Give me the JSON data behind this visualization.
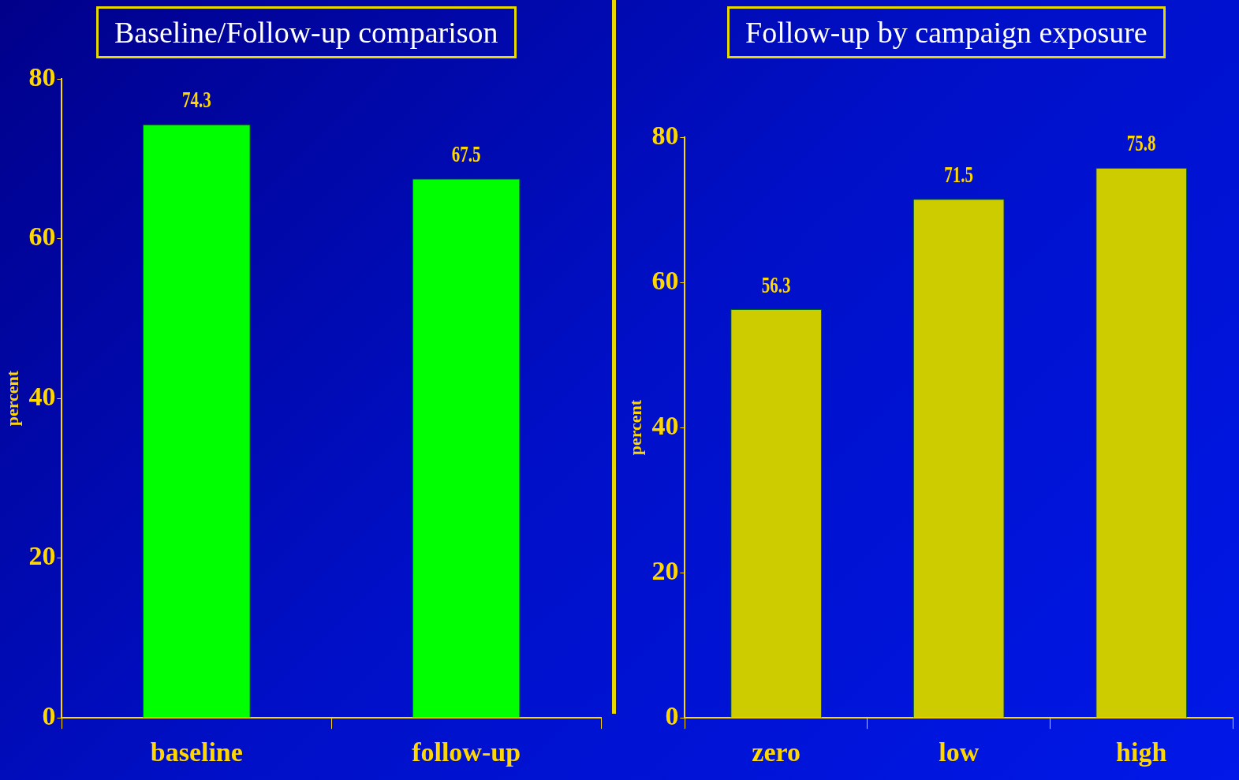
{
  "chart_data": [
    {
      "type": "bar",
      "title": "Baseline/Follow-up comparison",
      "ylabel": "percent",
      "categories": [
        "baseline",
        "follow-up"
      ],
      "values": [
        74.3,
        67.5
      ],
      "color": "#00ff00",
      "ylim": [
        0,
        80
      ],
      "yticks": [
        0,
        20,
        40,
        60,
        80
      ],
      "data_labels": true
    },
    {
      "type": "bar",
      "title": "Follow-up by campaign exposure",
      "ylabel": "percent",
      "categories": [
        "zero",
        "low",
        "high"
      ],
      "values": [
        56.3,
        71.5,
        75.8
      ],
      "color": "#cccc00",
      "ylim": [
        0,
        80
      ],
      "yticks": [
        0,
        20,
        40,
        60,
        80
      ],
      "data_labels": true
    }
  ]
}
